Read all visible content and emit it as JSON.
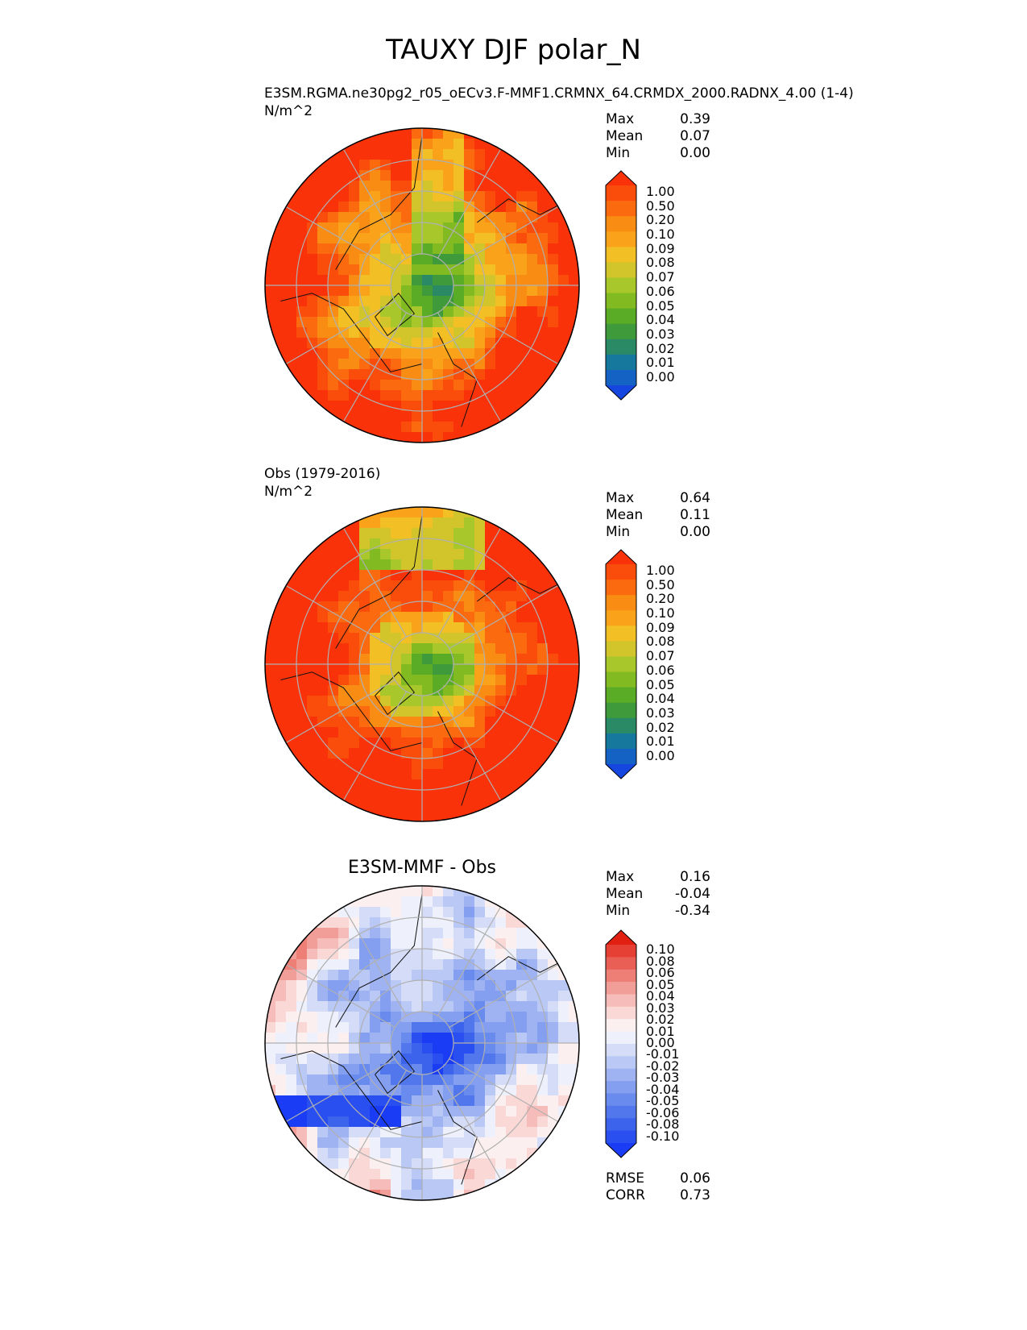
{
  "figure": {
    "title": "TAUXY DJF polar_N"
  },
  "chart_data": [
    {
      "type": "heatmap",
      "projection": "north-polar-stereographic",
      "title": "E3SM.RGMA.ne30pg2_r05_oECv3.F-MMF1.CRMNX_64.CRMDX_2000.RADNX_4.00 (1-4)",
      "units": "N/m^2",
      "stats": [
        {
          "label": "Max",
          "value": "0.39"
        },
        {
          "label": "Mean",
          "value": "0.07"
        },
        {
          "label": "Min",
          "value": "0.00"
        }
      ],
      "colorbar": {
        "ticks": [
          "1.00",
          "0.50",
          "0.20",
          "0.10",
          "0.09",
          "0.08",
          "0.07",
          "0.06",
          "0.05",
          "0.04",
          "0.03",
          "0.02",
          "0.01",
          "0.00"
        ],
        "colors": [
          "#1546e0",
          "#1463c4",
          "#17789e",
          "#2a8a66",
          "#3f9a3b",
          "#5aab25",
          "#82ba22",
          "#a8c72a",
          "#d2c52c",
          "#f2bf25",
          "#f9a21a",
          "#f98c12",
          "#fb6a0e",
          "#fa4c0a",
          "#f9320a"
        ],
        "extend": "both"
      },
      "field": "model"
    },
    {
      "type": "heatmap",
      "projection": "north-polar-stereographic",
      "title": "Obs (1979-2016)",
      "units": "N/m^2",
      "stats": [
        {
          "label": "Max",
          "value": "0.64"
        },
        {
          "label": "Mean",
          "value": "0.11"
        },
        {
          "label": "Min",
          "value": "0.00"
        }
      ],
      "colorbar": {
        "ticks": [
          "1.00",
          "0.50",
          "0.20",
          "0.10",
          "0.09",
          "0.08",
          "0.07",
          "0.06",
          "0.05",
          "0.04",
          "0.03",
          "0.02",
          "0.01",
          "0.00"
        ],
        "colors": [
          "#1546e0",
          "#1463c4",
          "#17789e",
          "#2a8a66",
          "#3f9a3b",
          "#5aab25",
          "#82ba22",
          "#a8c72a",
          "#d2c52c",
          "#f2bf25",
          "#f9a21a",
          "#f98c12",
          "#fb6a0e",
          "#fa4c0a",
          "#f9320a"
        ],
        "extend": "both"
      },
      "field": "obs"
    },
    {
      "type": "heatmap",
      "projection": "north-polar-stereographic",
      "title": "E3SM-MMF - Obs",
      "units": "",
      "stats": [
        {
          "label": "Max",
          "value": "0.16"
        },
        {
          "label": "Mean",
          "value": "-0.04"
        },
        {
          "label": "Min",
          "value": "-0.34"
        }
      ],
      "colorbar": {
        "ticks": [
          "0.10",
          "0.08",
          "0.06",
          "0.05",
          "0.04",
          "0.03",
          "0.02",
          "0.01",
          "0.00",
          "-0.01",
          "-0.02",
          "-0.03",
          "-0.04",
          "-0.05",
          "-0.06",
          "-0.08",
          "-0.10"
        ],
        "colors": [
          "#1a3cf5",
          "#2a4ff0",
          "#3c63ec",
          "#5277ec",
          "#6a8bee",
          "#849ff0",
          "#9fb3f2",
          "#b9c8f5",
          "#d4dcf8",
          "#eef0fb",
          "#fbefef",
          "#f9d8d6",
          "#f6bcb9",
          "#f29e98",
          "#ee7f77",
          "#ea5f55",
          "#e63f33",
          "#e22012"
        ],
        "extend": "both"
      },
      "field": "diff",
      "metrics": [
        {
          "label": "RMSE",
          "value": "0.06"
        },
        {
          "label": "CORR",
          "value": "0.73"
        }
      ]
    }
  ]
}
